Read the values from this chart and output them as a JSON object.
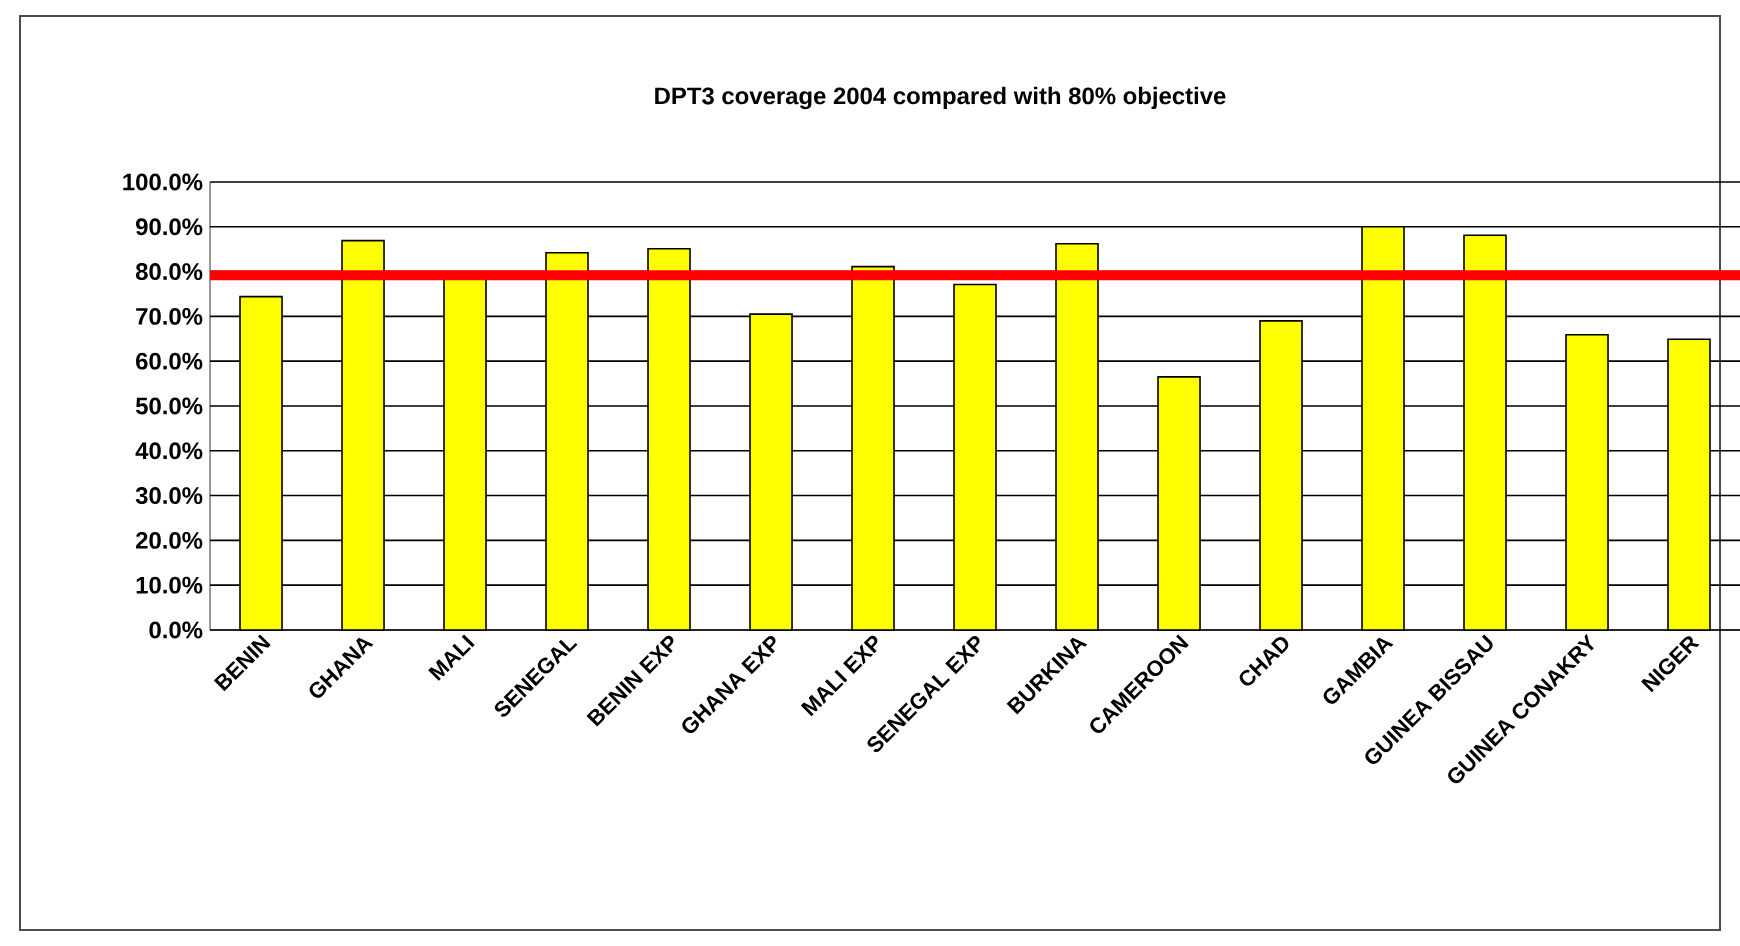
{
  "chart_data": {
    "type": "bar",
    "title": "DPT3 coverage 2004 compared with 80% objective",
    "categories": [
      "BENIN",
      "GHANA",
      "MALI",
      "SENEGAL",
      "BENIN EXP",
      "GHANA EXP",
      "MALI EXP",
      "SENEGAL EXP",
      "BURKINA",
      "CAMEROON",
      "CHAD",
      "GAMBIA",
      "GUINEA BISSAU",
      "GUINEA CONAKRY",
      "NIGER"
    ],
    "values": [
      74.4,
      86.9,
      79,
      84.2,
      85.1,
      70.5,
      81.1,
      77.1,
      86.2,
      56.5,
      69.0,
      90.0,
      88.1,
      65.9,
      64.9
    ],
    "color": "#ffff00",
    "ylim": [
      0,
      100
    ],
    "yticks": [
      {
        "value": 0,
        "label": "0.0%"
      },
      {
        "value": 10,
        "label": "10.0%"
      },
      {
        "value": 20,
        "label": "20.0%"
      },
      {
        "value": 30,
        "label": "30.0%"
      },
      {
        "value": 40,
        "label": "40.0%"
      },
      {
        "value": 50,
        "label": "50.0%"
      },
      {
        "value": 60,
        "label": "60.0%"
      },
      {
        "value": 70,
        "label": "70.0%"
      },
      {
        "value": 80,
        "label": "80.0%"
      },
      {
        "value": 90,
        "label": "90.0%"
      },
      {
        "value": 100,
        "label": "100.0%"
      }
    ],
    "grid": "y",
    "ref_lines": [
      {
        "axis": "y",
        "value": 79.2,
        "color": "#ff0000"
      }
    ]
  }
}
